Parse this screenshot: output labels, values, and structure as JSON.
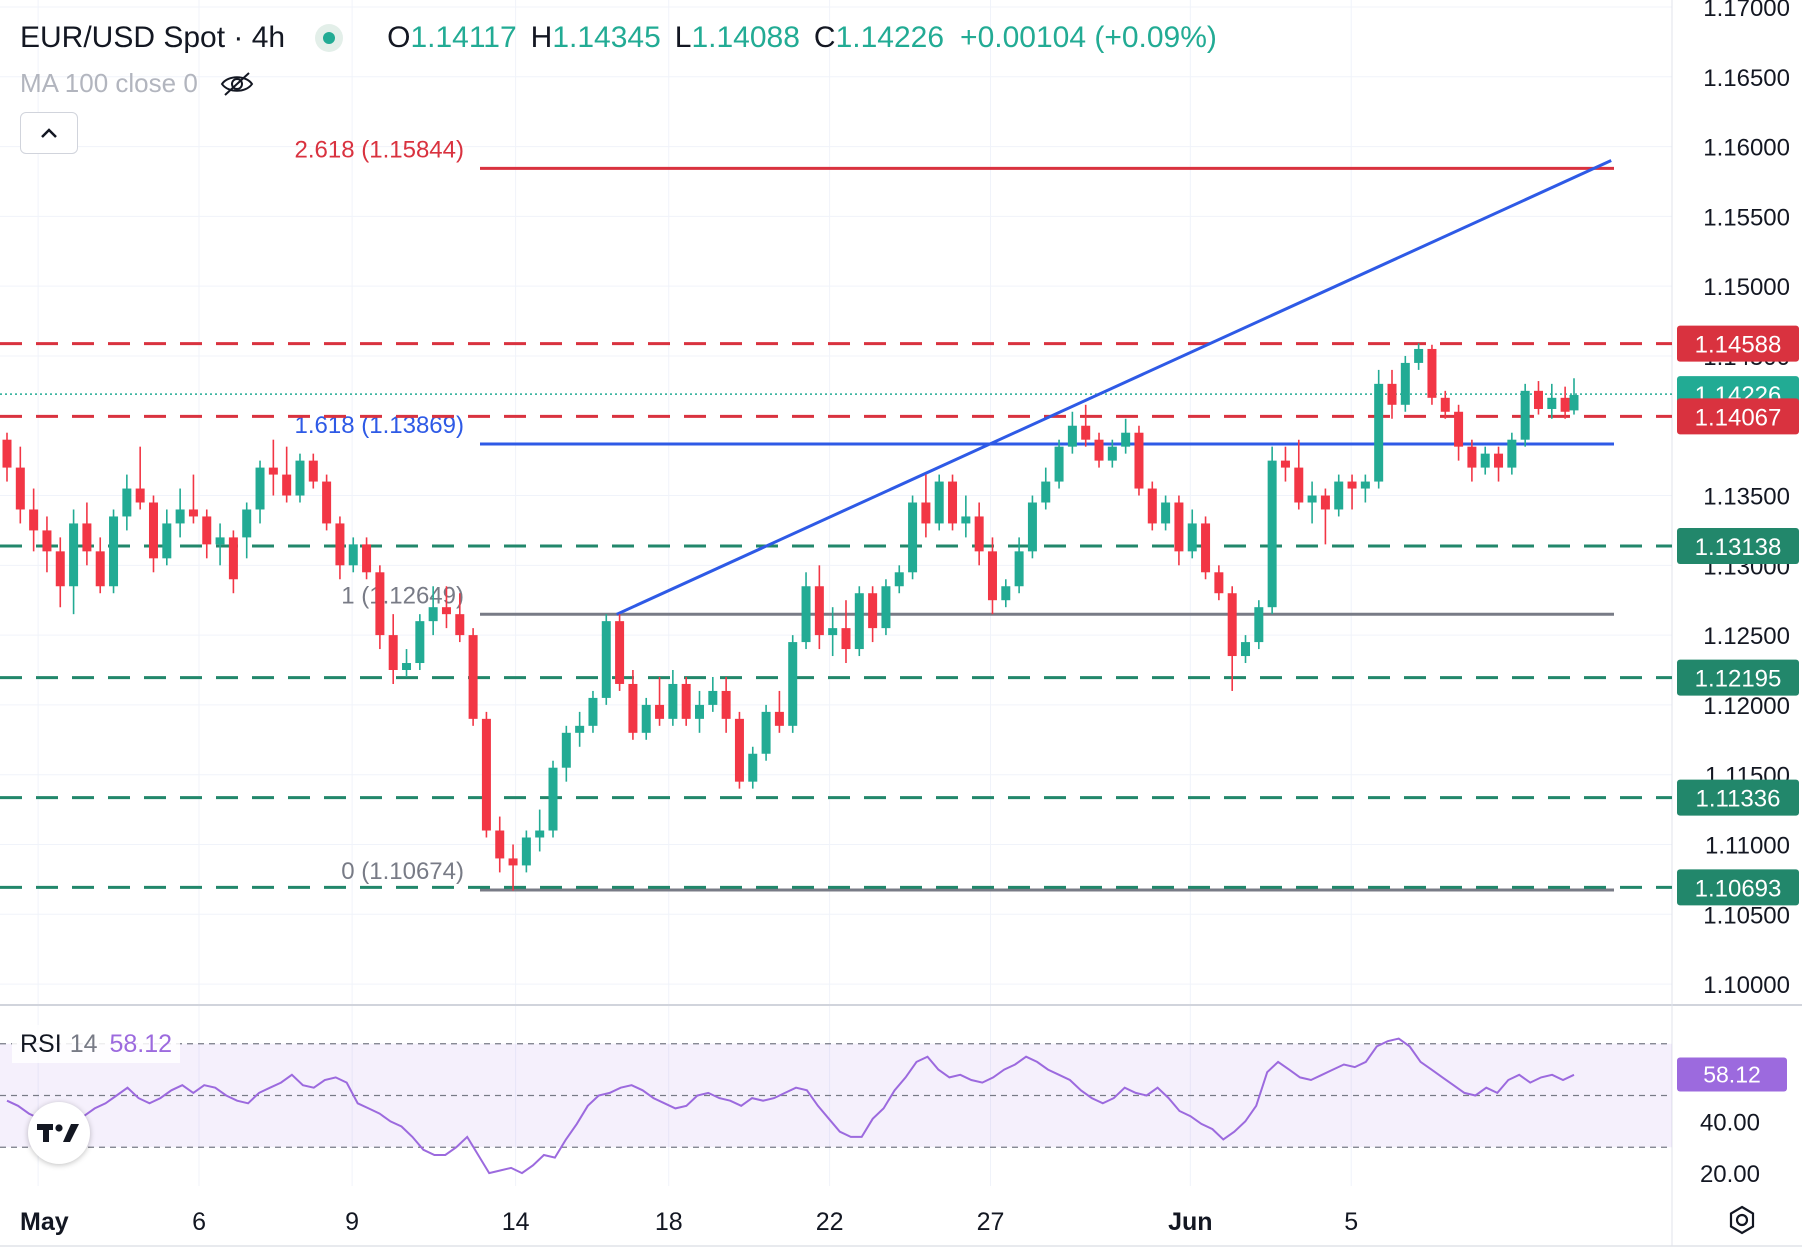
{
  "header": {
    "symbol": "EUR/USD Spot · 4h",
    "open_label": "O",
    "open": "1.14117",
    "high_label": "H",
    "high": "1.14345",
    "low_label": "L",
    "low": "1.14088",
    "close_label": "C",
    "close": "1.14226",
    "change": "+0.00104 (+0.09%)",
    "status_color": "#22ab94"
  },
  "indicator": {
    "ma_label": "MA 100 close 0",
    "hidden_icon": "eye-off-icon"
  },
  "collapse_icon": "chevron-up-icon",
  "rsi_panel": {
    "name": "RSI",
    "length": "14",
    "value": "58.12"
  },
  "colors": {
    "up": "#22ab94",
    "down": "#f23645",
    "support": "#22876b",
    "resistance": "#d9323f",
    "trendline": "#2e5ae6",
    "rsi": "#9c6ade"
  },
  "chart_data": {
    "type": "candlestick",
    "price_axis": {
      "ticks": [
        "1.17000",
        "1.16500",
        "1.16000",
        "1.15500",
        "1.15000",
        "1.14500",
        "1.13500",
        "1.13000",
        "1.12500",
        "1.12000",
        "1.11500",
        "1.11000",
        "1.10500",
        "1.10000"
      ],
      "range": [
        1.0985,
        1.1705
      ]
    },
    "time_axis": [
      "May",
      "6",
      "9",
      "14",
      "18",
      "22",
      "27",
      "Jun",
      "5"
    ],
    "price_labels": [
      {
        "value": 1.14588,
        "text": "1.14588",
        "kind": "resistance"
      },
      {
        "value": 1.14226,
        "text": "1.14226",
        "kind": "current"
      },
      {
        "value": 1.14067,
        "text": "1.14067",
        "kind": "resistance"
      },
      {
        "value": 1.13138,
        "text": "1.13138",
        "kind": "support"
      },
      {
        "value": 1.12195,
        "text": "1.12195",
        "kind": "support"
      },
      {
        "value": 1.11336,
        "text": "1.11336",
        "kind": "support"
      },
      {
        "value": 1.10693,
        "text": "1.10693",
        "kind": "support"
      }
    ],
    "fib_levels": [
      {
        "label": "2.618 (1.15844)",
        "value": 1.15844,
        "color": "#d9323f"
      },
      {
        "label": "1.618 (1.13869)",
        "value": 1.13869,
        "color": "#2e5ae6"
      },
      {
        "label": "1 (1.12649)",
        "value": 1.12649,
        "color": "#787b86"
      },
      {
        "label": "0 (1.10674)",
        "value": 1.10674,
        "color": "#787b86"
      }
    ],
    "trendline": {
      "from": [
        14.4,
        1.12649
      ],
      "to": [
        43.9,
        1.159
      ]
    },
    "candles": [
      [
        0.0,
        1.139,
        1.1395,
        1.136,
        1.137
      ],
      [
        0.6,
        1.137,
        1.1385,
        1.133,
        1.134
      ],
      [
        1.2,
        1.134,
        1.1355,
        1.131,
        1.1325
      ],
      [
        1.8,
        1.1325,
        1.1335,
        1.1295,
        1.131
      ],
      [
        2.4,
        1.131,
        1.132,
        1.127,
        1.1285
      ],
      [
        3.0,
        1.1285,
        1.134,
        1.1265,
        1.133
      ],
      [
        3.6,
        1.133,
        1.1345,
        1.13,
        1.131
      ],
      [
        4.2,
        1.131,
        1.132,
        1.128,
        1.1285
      ],
      [
        4.8,
        1.1285,
        1.134,
        1.128,
        1.1335
      ],
      [
        5.4,
        1.1335,
        1.1365,
        1.1325,
        1.1355
      ],
      [
        6.0,
        1.1355,
        1.1385,
        1.134,
        1.1345
      ],
      [
        6.6,
        1.1345,
        1.135,
        1.1295,
        1.1305
      ],
      [
        7.2,
        1.1305,
        1.134,
        1.13,
        1.133
      ],
      [
        7.8,
        1.133,
        1.1355,
        1.132,
        1.134
      ],
      [
        8.4,
        1.134,
        1.1365,
        1.133,
        1.1335
      ],
      [
        9.0,
        1.1335,
        1.134,
        1.1305,
        1.1315
      ],
      [
        9.6,
        1.1315,
        1.133,
        1.13,
        1.132
      ],
      [
        10.2,
        1.132,
        1.1325,
        1.128,
        1.129
      ],
      [
        10.8,
        1.132,
        1.1345,
        1.1305,
        1.134
      ],
      [
        11.4,
        1.134,
        1.1375,
        1.133,
        1.137
      ],
      [
        12.0,
        1.137,
        1.139,
        1.135,
        1.1365
      ],
      [
        12.6,
        1.1365,
        1.1385,
        1.1345,
        1.135
      ],
      [
        13.2,
        1.135,
        1.138,
        1.1345,
        1.1375
      ],
      [
        13.8,
        1.1375,
        1.138,
        1.1355,
        1.136
      ],
      [
        14.4,
        1.136,
        1.1365,
        1.1325,
        1.133
      ],
      [
        15.0,
        1.133,
        1.1335,
        1.129,
        1.13
      ],
      [
        15.6,
        1.13,
        1.132,
        1.1295,
        1.1315
      ],
      [
        16.2,
        1.1315,
        1.132,
        1.129,
        1.1295
      ],
      [
        16.8,
        1.1295,
        1.13,
        1.124,
        1.125
      ],
      [
        17.4,
        1.125,
        1.1265,
        1.1215,
        1.1225
      ],
      [
        18.0,
        1.1225,
        1.124,
        1.122,
        1.123
      ],
      [
        18.6,
        1.123,
        1.1265,
        1.1225,
        1.126
      ],
      [
        19.2,
        1.126,
        1.1285,
        1.125,
        1.127
      ],
      [
        19.8,
        1.127,
        1.1285,
        1.1255,
        1.1265
      ],
      [
        20.4,
        1.1265,
        1.128,
        1.1245,
        1.125
      ],
      [
        21.0,
        1.125,
        1.1255,
        1.1185,
        1.119
      ],
      [
        21.6,
        1.119,
        1.1195,
        1.1105,
        1.111
      ],
      [
        22.2,
        1.111,
        1.112,
        1.108,
        1.109
      ],
      [
        22.8,
        1.109,
        1.11,
        1.1067,
        1.1085
      ],
      [
        23.4,
        1.1085,
        1.111,
        1.108,
        1.1105
      ],
      [
        24.0,
        1.1105,
        1.1125,
        1.1095,
        1.111
      ],
      [
        24.6,
        1.111,
        1.116,
        1.1105,
        1.1155
      ],
      [
        25.2,
        1.1155,
        1.1185,
        1.1145,
        1.118
      ],
      [
        25.8,
        1.118,
        1.1195,
        1.117,
        1.1185
      ],
      [
        26.4,
        1.1185,
        1.121,
        1.118,
        1.1205
      ],
      [
        27.0,
        1.1205,
        1.1265,
        1.12,
        1.126
      ],
      [
        27.6,
        1.126,
        1.1265,
        1.121,
        1.1215
      ],
      [
        28.2,
        1.1215,
        1.1225,
        1.1175,
        1.118
      ],
      [
        28.8,
        1.118,
        1.1205,
        1.1175,
        1.12
      ],
      [
        29.4,
        1.12,
        1.122,
        1.1185,
        1.119
      ],
      [
        30.0,
        1.119,
        1.1225,
        1.1185,
        1.1215
      ],
      [
        30.6,
        1.1215,
        1.122,
        1.1185,
        1.119
      ],
      [
        31.2,
        1.119,
        1.121,
        1.118,
        1.12
      ],
      [
        31.8,
        1.12,
        1.122,
        1.1195,
        1.121
      ],
      [
        32.4,
        1.121,
        1.122,
        1.118,
        1.119
      ],
      [
        33.0,
        1.119,
        1.1195,
        1.114,
        1.1145
      ],
      [
        33.6,
        1.1145,
        1.117,
        1.114,
        1.1165
      ],
      [
        34.2,
        1.1165,
        1.12,
        1.116,
        1.1195
      ],
      [
        34.8,
        1.1195,
        1.121,
        1.118,
        1.1185
      ],
      [
        35.4,
        1.1185,
        1.125,
        1.118,
        1.1245
      ],
      [
        36.0,
        1.1245,
        1.1295,
        1.124,
        1.1285
      ],
      [
        36.6,
        1.1285,
        1.13,
        1.124,
        1.125
      ],
      [
        37.2,
        1.125,
        1.127,
        1.1235,
        1.1255
      ],
      [
        37.8,
        1.1255,
        1.1275,
        1.123,
        1.124
      ],
      [
        38.4,
        1.124,
        1.1285,
        1.1235,
        1.128
      ],
      [
        39.0,
        1.128,
        1.1285,
        1.1245,
        1.1255
      ],
      [
        39.6,
        1.1255,
        1.129,
        1.125,
        1.1285
      ],
      [
        40.2,
        1.1285,
        1.13,
        1.128,
        1.1295
      ],
      [
        40.8,
        1.1295,
        1.135,
        1.129,
        1.1345
      ],
      [
        41.4,
        1.1345,
        1.1365,
        1.132,
        1.133
      ],
      [
        42.0,
        1.133,
        1.1365,
        1.1325,
        1.136
      ],
      [
        42.6,
        1.136,
        1.1365,
        1.1325,
        1.133
      ],
      [
        43.2,
        1.133,
        1.135,
        1.132,
        1.1335
      ],
      [
        43.8,
        1.1335,
        1.1345,
        1.13,
        1.131
      ],
      [
        44.4,
        1.131,
        1.132,
        1.1265,
        1.1275
      ],
      [
        45.0,
        1.1275,
        1.129,
        1.127,
        1.1285
      ],
      [
        45.6,
        1.1285,
        1.132,
        1.128,
        1.131
      ],
      [
        46.2,
        1.131,
        1.135,
        1.1305,
        1.1345
      ],
      [
        46.8,
        1.1345,
        1.137,
        1.134,
        1.136
      ],
      [
        47.4,
        1.136,
        1.139,
        1.1355,
        1.1385
      ],
      [
        48.0,
        1.1385,
        1.141,
        1.138,
        1.14
      ],
      [
        48.6,
        1.14,
        1.1415,
        1.1385,
        1.139
      ],
      [
        49.2,
        1.139,
        1.1395,
        1.137,
        1.1375
      ],
      [
        49.8,
        1.1375,
        1.139,
        1.137,
        1.1385
      ],
      [
        50.4,
        1.1385,
        1.1405,
        1.138,
        1.1395
      ],
      [
        51.0,
        1.1395,
        1.14,
        1.135,
        1.1355
      ],
      [
        51.6,
        1.1355,
        1.136,
        1.1325,
        1.133
      ],
      [
        52.2,
        1.133,
        1.135,
        1.1325,
        1.1345
      ],
      [
        52.8,
        1.1345,
        1.135,
        1.13,
        1.131
      ],
      [
        53.4,
        1.131,
        1.134,
        1.1305,
        1.133
      ],
      [
        54.0,
        1.133,
        1.1335,
        1.129,
        1.1295
      ],
      [
        54.6,
        1.1295,
        1.13,
        1.1275,
        1.128
      ],
      [
        55.2,
        1.128,
        1.1285,
        1.121,
        1.1235
      ],
      [
        55.8,
        1.1235,
        1.125,
        1.123,
        1.1245
      ],
      [
        56.4,
        1.1245,
        1.1275,
        1.124,
        1.127
      ],
      [
        57.0,
        1.127,
        1.1385,
        1.1265,
        1.1375
      ],
      [
        57.6,
        1.1375,
        1.1385,
        1.136,
        1.137
      ],
      [
        58.2,
        1.137,
        1.139,
        1.134,
        1.1345
      ],
      [
        58.8,
        1.1345,
        1.136,
        1.133,
        1.135
      ],
      [
        59.4,
        1.135,
        1.1355,
        1.1315,
        1.134
      ],
      [
        60.0,
        1.134,
        1.1365,
        1.1335,
        1.136
      ],
      [
        60.6,
        1.136,
        1.1365,
        1.134,
        1.1355
      ],
      [
        61.2,
        1.1355,
        1.1365,
        1.1345,
        1.136
      ],
      [
        61.8,
        1.136,
        1.144,
        1.1355,
        1.143
      ],
      [
        62.4,
        1.143,
        1.144,
        1.1405,
        1.1415
      ],
      [
        63.0,
        1.1415,
        1.145,
        1.141,
        1.1445
      ],
      [
        63.6,
        1.1445,
        1.1459,
        1.144,
        1.1455
      ],
      [
        64.2,
        1.1455,
        1.1458,
        1.1415,
        1.142
      ],
      [
        64.8,
        1.142,
        1.1425,
        1.1405,
        1.141
      ],
      [
        65.4,
        1.141,
        1.1415,
        1.1375,
        1.1385
      ],
      [
        66.0,
        1.1385,
        1.139,
        1.136,
        1.137
      ],
      [
        66.6,
        1.137,
        1.1385,
        1.1365,
        1.138
      ],
      [
        67.2,
        1.138,
        1.1385,
        1.136,
        1.137
      ],
      [
        67.8,
        1.137,
        1.1395,
        1.1365,
        1.139
      ],
      [
        68.4,
        1.139,
        1.143,
        1.1385,
        1.1425
      ],
      [
        69.0,
        1.1425,
        1.1432,
        1.1408,
        1.1412
      ],
      [
        69.6,
        1.1412,
        1.143,
        1.1405,
        1.142
      ],
      [
        70.2,
        1.142,
        1.1428,
        1.1405,
        1.141
      ],
      [
        70.6,
        1.1411,
        1.1434,
        1.1408,
        1.1422
      ]
    ],
    "rsi": {
      "ticks": [
        "40.00",
        "20.00"
      ],
      "range": [
        15,
        85
      ],
      "band": [
        30,
        70
      ],
      "mid": 50,
      "values": [
        48,
        46,
        43,
        41,
        43,
        40,
        37,
        42,
        45,
        47,
        50,
        53,
        49,
        47,
        49,
        52,
        54,
        51,
        54,
        53,
        50,
        48,
        47,
        51,
        53,
        55,
        58,
        54,
        53,
        56,
        57,
        55,
        47,
        45,
        43,
        40,
        38,
        34,
        29,
        27,
        27,
        30,
        34,
        27,
        20,
        21,
        22,
        20,
        23,
        27,
        26,
        33,
        39,
        46,
        50,
        51,
        53,
        54,
        52,
        49,
        47,
        45,
        46,
        50,
        51,
        49,
        48,
        46,
        49,
        48,
        49,
        51,
        53,
        52,
        46,
        41,
        36,
        34,
        34,
        41,
        45,
        52,
        57,
        63,
        65,
        60,
        57,
        58,
        56,
        55,
        57,
        60,
        62,
        65,
        63,
        60,
        58,
        56,
        52,
        49,
        47,
        49,
        53,
        51,
        50,
        53,
        49,
        44,
        42,
        39,
        37,
        33,
        36,
        40,
        46,
        59,
        63,
        60,
        57,
        56,
        58,
        60,
        62,
        61,
        63,
        69,
        71,
        72,
        69,
        63,
        60,
        57,
        54,
        51,
        50,
        53,
        51,
        56,
        58,
        55,
        57,
        58,
        56,
        58
      ]
    }
  }
}
